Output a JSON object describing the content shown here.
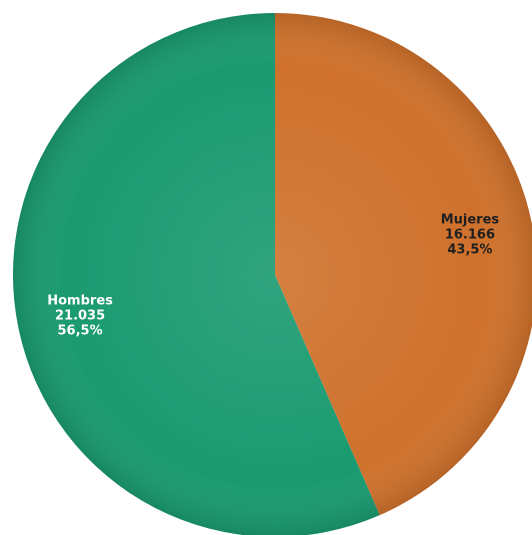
{
  "chart_data": {
    "type": "pie",
    "title": "",
    "slices": [
      {
        "label": "Mujeres",
        "value": 16166,
        "value_text": "16.166",
        "percent_text": "43,5%",
        "color": "#cf712c",
        "label_color": "#1f1f1f"
      },
      {
        "label": "Hombres",
        "value": 21035,
        "value_text": "21.035",
        "percent_text": "56,5%",
        "color": "#1a9a70",
        "label_color": "#ffffff"
      }
    ],
    "start_angle_deg": 0,
    "direction": "clockwise"
  }
}
